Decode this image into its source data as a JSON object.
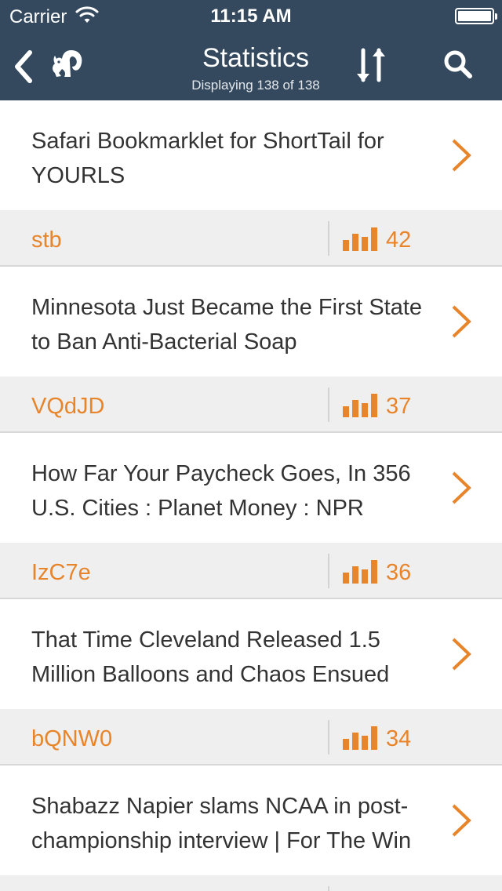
{
  "status_bar": {
    "carrier": "Carrier",
    "time": "11:15 AM"
  },
  "nav": {
    "title": "Statistics",
    "subtitle": "Displaying 138 of 138"
  },
  "colors": {
    "header_bg": "#34495e",
    "accent": "#e8852b",
    "row_bg": "#ffffff",
    "meta_bg": "#efefef",
    "title_text": "#333333"
  },
  "icons": {
    "back": "chevron-left-icon",
    "logo": "squirrel-icon",
    "sort": "sort-arrows-icon",
    "search": "search-icon",
    "stats": "bar-chart-icon",
    "disclosure": "chevron-right-icon"
  },
  "items": [
    {
      "title": "Safari Bookmarklet for ShortTail for YOURLS",
      "code": "stb",
      "clicks": "42"
    },
    {
      "title": "Minnesota Just Became the First State to Ban Anti-Bacterial Soap",
      "code": "VQdJD",
      "clicks": "37"
    },
    {
      "title": "How Far Your Paycheck Goes, In 356 U.S. Cities : Planet Money : NPR",
      "code": "IzC7e",
      "clicks": "36"
    },
    {
      "title": "That Time Cleveland Released 1.5 Million Balloons and Chaos Ensued",
      "code": "bQNW0",
      "clicks": "34"
    },
    {
      "title": "Shabazz Napier slams NCAA in post-championship interview | For The Win",
      "code": "",
      "clicks": ""
    }
  ]
}
